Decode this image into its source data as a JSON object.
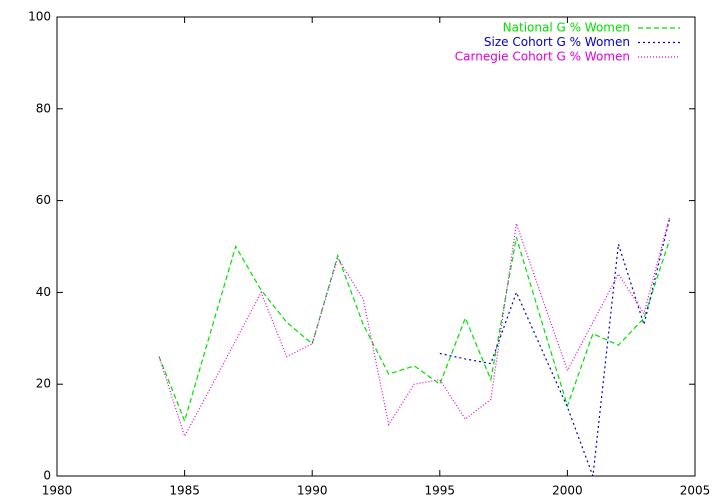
{
  "chart_data": {
    "type": "line",
    "x": [
      1984,
      1985,
      1986,
      1987,
      1988,
      1989,
      1990,
      1991,
      1992,
      1993,
      1994,
      1995,
      1996,
      1997,
      1998,
      1999,
      2000,
      2001,
      2002,
      2003,
      2004
    ],
    "series": [
      {
        "name": "National G % Women",
        "color": "#00e000",
        "values": [
          26,
          12,
          31,
          50,
          40.5,
          33.5,
          28.8,
          48,
          33,
          22.2,
          24,
          20,
          34.4,
          21,
          52,
          33.5,
          15.3,
          31,
          28.5,
          34.4,
          51.4
        ]
      },
      {
        "name": "Size Cohort G % Women",
        "color": "#0000c8",
        "values": [
          null,
          null,
          null,
          null,
          null,
          null,
          null,
          null,
          null,
          null,
          null,
          26.7,
          25.5,
          24.5,
          40,
          27.5,
          15,
          0,
          50.5,
          33,
          56
        ]
      },
      {
        "name": "Carnegie Cohort G % Women",
        "color": "#e000e0",
        "values": [
          26,
          8.7,
          19,
          29.5,
          40,
          26,
          28.8,
          47.5,
          38.5,
          11.2,
          20,
          21,
          12.4,
          16.7,
          55,
          39,
          23,
          33.5,
          44,
          35.4,
          56.4
        ]
      }
    ],
    "xlim": [
      1980,
      2005
    ],
    "xticks": [
      1980,
      1985,
      1990,
      1995,
      2000,
      2005
    ],
    "ylim": [
      0,
      100
    ],
    "yticks": [
      0,
      20,
      40,
      60,
      80,
      100
    ],
    "legend": "top-right"
  }
}
